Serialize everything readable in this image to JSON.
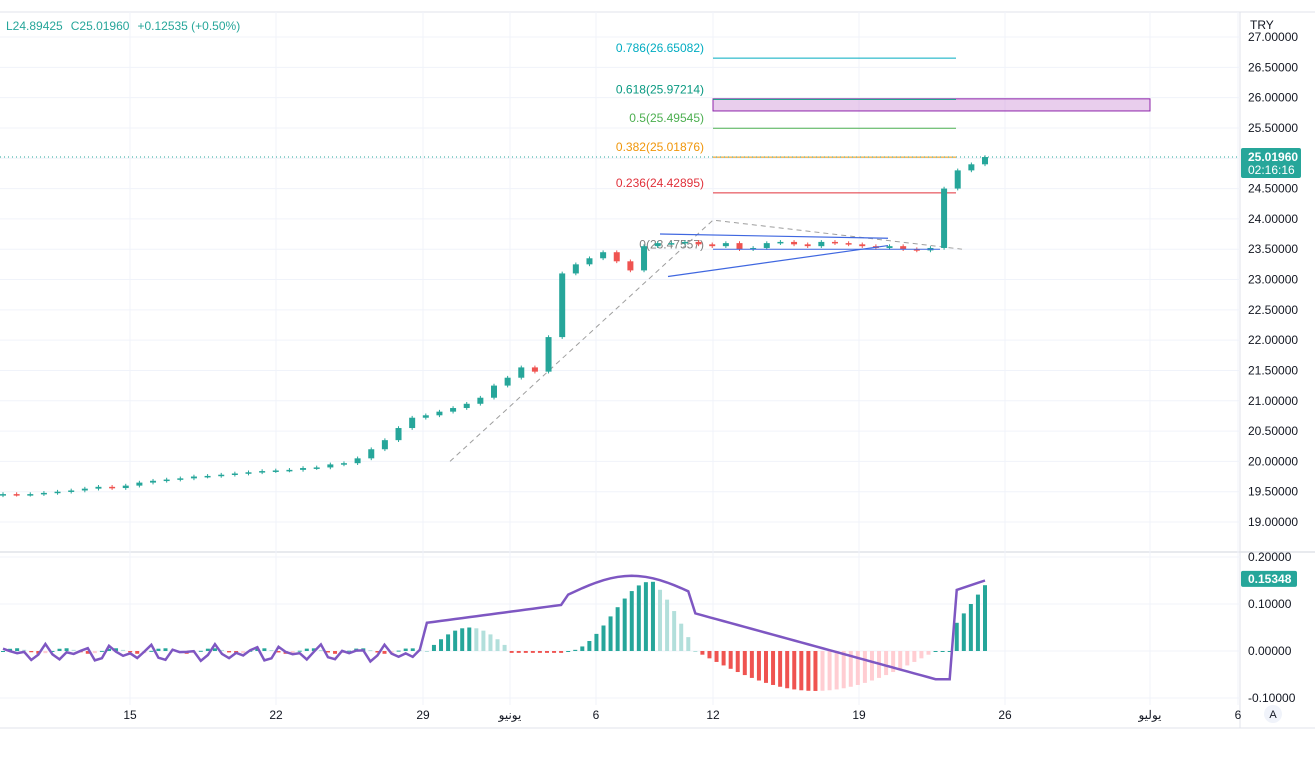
{
  "header": {
    "ohlc_low": "L24.89425",
    "ohlc_close": "C25.01960",
    "change": "+0.12535 (+0.50%)",
    "currency": "TRY"
  },
  "chart_data": [
    {
      "type": "candlestick",
      "title": "",
      "currency": "TRY",
      "ylim": [
        18.6,
        27.0
      ],
      "y_tick_labels": [
        "19.00000",
        "19.50000",
        "20.00000",
        "20.50000",
        "21.00000",
        "21.50000",
        "22.00000",
        "22.50000",
        "23.00000",
        "23.50000",
        "24.00000",
        "24.50000",
        "25.00000",
        "25.50000",
        "26.00000",
        "26.50000",
        "27.00000"
      ],
      "y_ticks": [
        19.0,
        19.5,
        20.0,
        20.5,
        21.0,
        21.5,
        22.0,
        22.5,
        23.0,
        23.5,
        24.0,
        24.5,
        25.0,
        25.5,
        26.0,
        26.5,
        27.0
      ],
      "x_tick_labels": [
        "15",
        "22",
        "29",
        "يونيو",
        "6",
        "12",
        "19",
        "26",
        "يوليو",
        "6"
      ],
      "x_ticks": [
        9,
        16,
        23,
        26,
        30,
        35.5,
        42.5,
        49.5,
        56.5,
        61
      ],
      "close_series_approx": [
        19.46,
        19.45,
        19.46,
        19.48,
        19.5,
        19.52,
        19.55,
        19.58,
        19.56,
        19.6,
        19.65,
        19.68,
        19.7,
        19.72,
        19.75,
        19.76,
        19.78,
        19.8,
        19.82,
        19.84,
        19.85,
        19.86,
        19.89,
        19.9,
        19.95,
        19.97,
        20.05,
        20.2,
        20.35,
        20.55,
        20.72,
        20.76,
        20.82,
        20.88,
        20.95,
        21.05,
        21.25,
        21.38,
        21.55,
        21.48,
        22.05,
        23.1,
        23.25,
        23.35,
        23.45,
        23.3,
        23.15,
        23.55,
        23.6,
        23.6,
        23.62,
        23.58,
        23.55,
        23.6,
        23.5,
        23.52,
        23.6,
        23.62,
        23.58,
        23.55,
        23.62,
        23.6,
        23.58,
        23.55,
        23.52,
        23.55,
        23.5,
        23.48,
        23.52,
        24.5,
        24.8,
        24.9,
        25.02
      ],
      "current_price": 25.0196,
      "current_price_label": "25.01960",
      "countdown_label": "02:16:16",
      "fibonacci_levels": [
        {
          "label": "0(23.47557)",
          "value": 23.47557,
          "color": "#808080"
        },
        {
          "label": "0.236(24.42895)",
          "value": 24.42895,
          "color": "#e0303a"
        },
        {
          "label": "0.382(25.01876)",
          "value": 25.01876,
          "color": "#f0960a"
        },
        {
          "label": "0.5(25.49545)",
          "value": 25.49545,
          "color": "#4caf50"
        },
        {
          "label": "0.618(25.97214)",
          "value": 25.97214,
          "color": "#089981"
        },
        {
          "label": "0.786(26.65082)",
          "value": 26.65082,
          "color": "#00acc1"
        }
      ],
      "zone_rectangle": {
        "from": 25.78,
        "to": 25.98,
        "color": "#ce93d8"
      },
      "triangle_pattern": {
        "upper_start": 23.75,
        "upper_end": 23.68,
        "lower_start": 23.05,
        "lower_end": 23.56,
        "color": "#3f67e0"
      }
    },
    {
      "type": "histogram+line",
      "title": "",
      "ylim": [
        -0.1,
        0.2
      ],
      "y_tick_labels": [
        "-0.10000",
        "0.00000",
        "0.10000",
        "0.20000"
      ],
      "y_ticks": [
        -0.1,
        0.0,
        0.1,
        0.2
      ],
      "current_value_label": "0.15348",
      "current_value": 0.15348,
      "line_color": "#7e57c2",
      "histogram_colors": {
        "pos_up": "#26a69a",
        "pos_down": "#b2dfdb",
        "neg_down": "#ef5350",
        "neg_up": "#ffcdd2"
      }
    }
  ],
  "footer": {
    "auto_scale_label": "A"
  }
}
